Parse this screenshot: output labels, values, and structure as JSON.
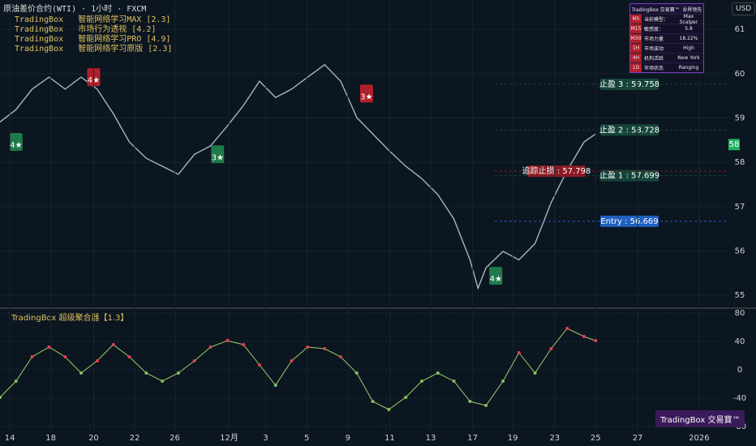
{
  "header": {
    "symbol": "原油差价合约(WTI) · 1小时 · FXCM",
    "indicators": [
      "TradingBox   智能网络学习MAX [2.3]",
      "TradingBox   市场行为透视 [4.2]",
      "TradingBox   智能网络学习PRO [4.9]",
      "TradingBox   智能网络学习原版 [2.3]"
    ],
    "currency": "USD"
  },
  "info_table": {
    "title": "TradingBox 交易寶™",
    "status": "业界领先",
    "rows": [
      [
        "M5",
        "当前模型：",
        "Max Scalper"
      ],
      [
        "M15",
        "敏感度：",
        "5.8"
      ],
      [
        "M30",
        "市场力量",
        "18.22%"
      ],
      [
        "1H",
        "市场波动",
        "High"
      ],
      [
        "4H",
        "机构活跃",
        "New York"
      ],
      [
        "1D",
        "市场状态",
        "Ranging"
      ]
    ]
  },
  "watermark": "TradingBox 交易寶™",
  "chart_data": [
    {
      "type": "line",
      "color": "#aab4be",
      "x": [
        0,
        18,
        36,
        55,
        73,
        91,
        109,
        127,
        145,
        164,
        182,
        200,
        218,
        236,
        255,
        273,
        291,
        309,
        327,
        345,
        364,
        382,
        400,
        418,
        436,
        455,
        473,
        491,
        509,
        527,
        536,
        545,
        564,
        582,
        600,
        618,
        636,
        655,
        668
      ],
      "values": [
        58.91,
        59.19,
        59.65,
        59.92,
        59.65,
        59.92,
        59.65,
        59.1,
        58.46,
        58.09,
        57.91,
        57.73,
        58.18,
        58.37,
        58.82,
        59.28,
        59.83,
        59.46,
        59.65,
        59.92,
        60.2,
        59.83,
        59.01,
        58.64,
        58.27,
        57.91,
        57.63,
        57.27,
        56.72,
        55.8,
        55.16,
        55.62,
        55.99,
        55.8,
        56.17,
        57.09,
        57.82,
        58.46,
        58.64
      ],
      "xlim": [
        0,
        815
      ],
      "ylim": [
        54.71,
        61.66
      ],
      "yticks": [
        55,
        56,
        57,
        58,
        59,
        60,
        61
      ],
      "grid": true,
      "last_price": {
        "value": 58.4,
        "label": "58"
      },
      "annotations": [
        {
          "label": "止盈 3 : 59.758",
          "value": 59.758,
          "color": "#15453a"
        },
        {
          "label": "止盈 2 : 58.728",
          "value": 58.728,
          "color": "#15453a"
        },
        {
          "label": "止盈 1 : 57.699",
          "value": 57.699,
          "color": "#15453a"
        },
        {
          "label": "Entry : 56.669",
          "value": 56.669,
          "color": "#2060c0"
        },
        {
          "label": "追踪止损 : 57.798",
          "value": 57.798,
          "color": "#8a1a22"
        }
      ],
      "signals": [
        {
          "label": "4★",
          "x": 18,
          "value": 58.46,
          "color": "#1f7a4a"
        },
        {
          "label": "4★",
          "x": 105,
          "value": 59.92,
          "color": "#b0202a"
        },
        {
          "label": "3★",
          "x": 244,
          "value": 58.18,
          "color": "#1f7a4a"
        },
        {
          "label": "3★",
          "x": 411,
          "value": 59.55,
          "color": "#b0202a"
        },
        {
          "label": "4★",
          "x": 556,
          "value": 55.44,
          "color": "#1f7a4a"
        }
      ]
    },
    {
      "type": "line",
      "title": "TradingBox   超级聚合器【1.3】",
      "color": "#9ad06a",
      "x": [
        0,
        18,
        36,
        55,
        73,
        91,
        109,
        127,
        145,
        164,
        182,
        200,
        218,
        236,
        255,
        273,
        291,
        309,
        327,
        345,
        364,
        382,
        400,
        418,
        436,
        455,
        473,
        491,
        509,
        527,
        545,
        564,
        582,
        600,
        618,
        636,
        655,
        668
      ],
      "values": [
        -38.9,
        -16,
        18.3,
        32,
        18.3,
        -4.6,
        12.6,
        35.4,
        18.3,
        -4.6,
        -16,
        -4.6,
        12.6,
        32,
        41.1,
        35.4,
        6.9,
        -21.7,
        12.6,
        32,
        29.7,
        18.3,
        -4.6,
        -44.6,
        -56,
        -38.9,
        -16,
        -4.6,
        -16,
        -44.6,
        -50.3,
        -16,
        24,
        -4.6,
        29.7,
        58.3,
        46.9,
        41.1
      ],
      "xlim": [
        0,
        815
      ],
      "ylim": [
        -84.6,
        86.9
      ],
      "yticks": [
        -80,
        -40,
        0,
        40,
        80
      ],
      "grid": true,
      "xticks": [
        {
          "value": 11,
          "label": "14"
        },
        {
          "value": 57,
          "label": "18"
        },
        {
          "value": 105,
          "label": "20"
        },
        {
          "value": 151,
          "label": "22"
        },
        {
          "value": 196,
          "label": "26"
        },
        {
          "value": 257,
          "label": "12月"
        },
        {
          "value": 298,
          "label": "3"
        },
        {
          "value": 344,
          "label": "5"
        },
        {
          "value": 390,
          "label": "9"
        },
        {
          "value": 437,
          "label": "11"
        },
        {
          "value": 483,
          "label": "13"
        },
        {
          "value": 530,
          "label": "17"
        },
        {
          "value": 575,
          "label": "19"
        },
        {
          "value": 622,
          "label": "23"
        },
        {
          "value": 668,
          "label": "25"
        },
        {
          "value": 715,
          "label": "27"
        },
        {
          "value": 784,
          "label": "2026"
        }
      ]
    }
  ]
}
